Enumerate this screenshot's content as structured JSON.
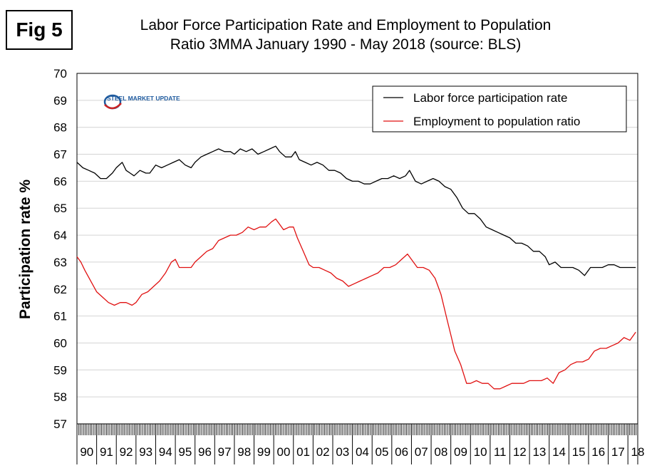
{
  "figure_label": "Fig 5",
  "watermark": {
    "brand_text": "STEEL MARKET UPDATE",
    "brand_color": "#1e5a9e",
    "accent_color": "#cc2222"
  },
  "chart_data": {
    "type": "line",
    "title": "Labor Force Participation Rate and Employment to Population",
    "subtitle": "Ratio 3MMA January 1990 - May 2018 (source: BLS)",
    "xlabel": "",
    "ylabel": "Participation rate %",
    "ylim": [
      57,
      70
    ],
    "xlim": [
      1990.0,
      2018.5
    ],
    "y_ticks": [
      "57",
      "58",
      "59",
      "60",
      "61",
      "62",
      "63",
      "64",
      "65",
      "66",
      "67",
      "68",
      "69",
      "70"
    ],
    "categories": [
      "90",
      "91",
      "92",
      "93",
      "94",
      "95",
      "96",
      "97",
      "98",
      "99",
      "00",
      "01",
      "02",
      "03",
      "04",
      "05",
      "06",
      "07",
      "08",
      "09",
      "10",
      "11",
      "12",
      "13",
      "14",
      "15",
      "16",
      "17",
      "18"
    ],
    "grid": true,
    "legend_position": "top-right",
    "series": [
      {
        "name": "Labor force participation rate",
        "color": "#000000",
        "x": [
          1990.0,
          1990.3,
          1990.6,
          1990.9,
          1991.2,
          1991.5,
          1991.8,
          1992.0,
          1992.3,
          1992.5,
          1992.7,
          1992.9,
          1993.2,
          1993.5,
          1993.7,
          1994.0,
          1994.3,
          1994.6,
          1994.9,
          1995.2,
          1995.5,
          1995.8,
          1996.0,
          1996.3,
          1996.6,
          1996.9,
          1997.2,
          1997.5,
          1997.8,
          1998.0,
          1998.3,
          1998.6,
          1998.9,
          1999.2,
          1999.5,
          1999.8,
          2000.1,
          2000.3,
          2000.6,
          2000.9,
          2001.1,
          2001.3,
          2001.6,
          2001.9,
          2002.2,
          2002.5,
          2002.8,
          2003.1,
          2003.4,
          2003.7,
          2004.0,
          2004.3,
          2004.6,
          2004.9,
          2005.2,
          2005.5,
          2005.8,
          2006.1,
          2006.4,
          2006.7,
          2006.9,
          2007.2,
          2007.5,
          2007.8,
          2008.1,
          2008.4,
          2008.7,
          2009.0,
          2009.3,
          2009.6,
          2009.9,
          2010.2,
          2010.5,
          2010.8,
          2011.1,
          2011.4,
          2011.7,
          2012.0,
          2012.3,
          2012.6,
          2012.9,
          2013.2,
          2013.5,
          2013.8,
          2014.0,
          2014.3,
          2014.6,
          2014.9,
          2015.2,
          2015.5,
          2015.8,
          2016.1,
          2016.4,
          2016.7,
          2017.0,
          2017.3,
          2017.6,
          2017.9,
          2018.1,
          2018.4
        ],
        "values": [
          66.7,
          66.5,
          66.4,
          66.3,
          66.1,
          66.1,
          66.3,
          66.5,
          66.7,
          66.4,
          66.3,
          66.2,
          66.4,
          66.3,
          66.3,
          66.6,
          66.5,
          66.6,
          66.7,
          66.8,
          66.6,
          66.5,
          66.7,
          66.9,
          67.0,
          67.1,
          67.2,
          67.1,
          67.1,
          67.0,
          67.2,
          67.1,
          67.2,
          67.0,
          67.1,
          67.2,
          67.3,
          67.1,
          66.9,
          66.9,
          67.1,
          66.8,
          66.7,
          66.6,
          66.7,
          66.6,
          66.4,
          66.4,
          66.3,
          66.1,
          66.0,
          66.0,
          65.9,
          65.9,
          66.0,
          66.1,
          66.1,
          66.2,
          66.1,
          66.2,
          66.4,
          66.0,
          65.9,
          66.0,
          66.1,
          66.0,
          65.8,
          65.7,
          65.4,
          65.0,
          64.8,
          64.8,
          64.6,
          64.3,
          64.2,
          64.1,
          64.0,
          63.9,
          63.7,
          63.7,
          63.6,
          63.4,
          63.4,
          63.2,
          62.9,
          63.0,
          62.8,
          62.8,
          62.8,
          62.7,
          62.5,
          62.8,
          62.8,
          62.8,
          62.9,
          62.9,
          62.8,
          62.8,
          62.8,
          62.8
        ]
      },
      {
        "name": "Employment to population ratio",
        "color": "#e01010",
        "x": [
          1990.0,
          1990.2,
          1990.4,
          1990.7,
          1991.0,
          1991.3,
          1991.6,
          1991.9,
          1992.2,
          1992.5,
          1992.8,
          1993.0,
          1993.3,
          1993.6,
          1993.9,
          1994.2,
          1994.5,
          1994.8,
          1995.0,
          1995.2,
          1995.5,
          1995.8,
          1996.0,
          1996.3,
          1996.6,
          1996.9,
          1997.2,
          1997.5,
          1997.8,
          1998.1,
          1998.4,
          1998.7,
          1999.0,
          1999.3,
          1999.6,
          1999.9,
          2000.1,
          2000.3,
          2000.5,
          2000.8,
          2001.0,
          2001.2,
          2001.5,
          2001.8,
          2002.0,
          2002.3,
          2002.6,
          2002.9,
          2003.2,
          2003.5,
          2003.8,
          2004.1,
          2004.4,
          2004.7,
          2005.0,
          2005.3,
          2005.6,
          2005.9,
          2006.2,
          2006.5,
          2006.8,
          2007.0,
          2007.3,
          2007.6,
          2007.9,
          2008.2,
          2008.5,
          2008.8,
          2009.0,
          2009.2,
          2009.5,
          2009.8,
          2010.0,
          2010.3,
          2010.6,
          2010.9,
          2011.2,
          2011.5,
          2011.8,
          2012.1,
          2012.4,
          2012.7,
          2013.0,
          2013.3,
          2013.6,
          2013.9,
          2014.2,
          2014.5,
          2014.8,
          2015.1,
          2015.4,
          2015.7,
          2016.0,
          2016.3,
          2016.6,
          2016.9,
          2017.2,
          2017.5,
          2017.8,
          2018.1,
          2018.4
        ],
        "values": [
          63.2,
          63.0,
          62.7,
          62.3,
          61.9,
          61.7,
          61.5,
          61.4,
          61.5,
          61.5,
          61.4,
          61.5,
          61.8,
          61.9,
          62.1,
          62.3,
          62.6,
          63.0,
          63.1,
          62.8,
          62.8,
          62.8,
          63.0,
          63.2,
          63.4,
          63.5,
          63.8,
          63.9,
          64.0,
          64.0,
          64.1,
          64.3,
          64.2,
          64.3,
          64.3,
          64.5,
          64.6,
          64.4,
          64.2,
          64.3,
          64.3,
          63.9,
          63.4,
          62.9,
          62.8,
          62.8,
          62.7,
          62.6,
          62.4,
          62.3,
          62.1,
          62.2,
          62.3,
          62.4,
          62.5,
          62.6,
          62.8,
          62.8,
          62.9,
          63.1,
          63.3,
          63.1,
          62.8,
          62.8,
          62.7,
          62.4,
          61.8,
          60.9,
          60.3,
          59.7,
          59.2,
          58.5,
          58.5,
          58.6,
          58.5,
          58.5,
          58.3,
          58.3,
          58.4,
          58.5,
          58.5,
          58.5,
          58.6,
          58.6,
          58.6,
          58.7,
          58.5,
          58.9,
          59.0,
          59.2,
          59.3,
          59.3,
          59.4,
          59.7,
          59.8,
          59.8,
          59.9,
          60.0,
          60.2,
          60.1,
          60.4
        ]
      }
    ]
  }
}
